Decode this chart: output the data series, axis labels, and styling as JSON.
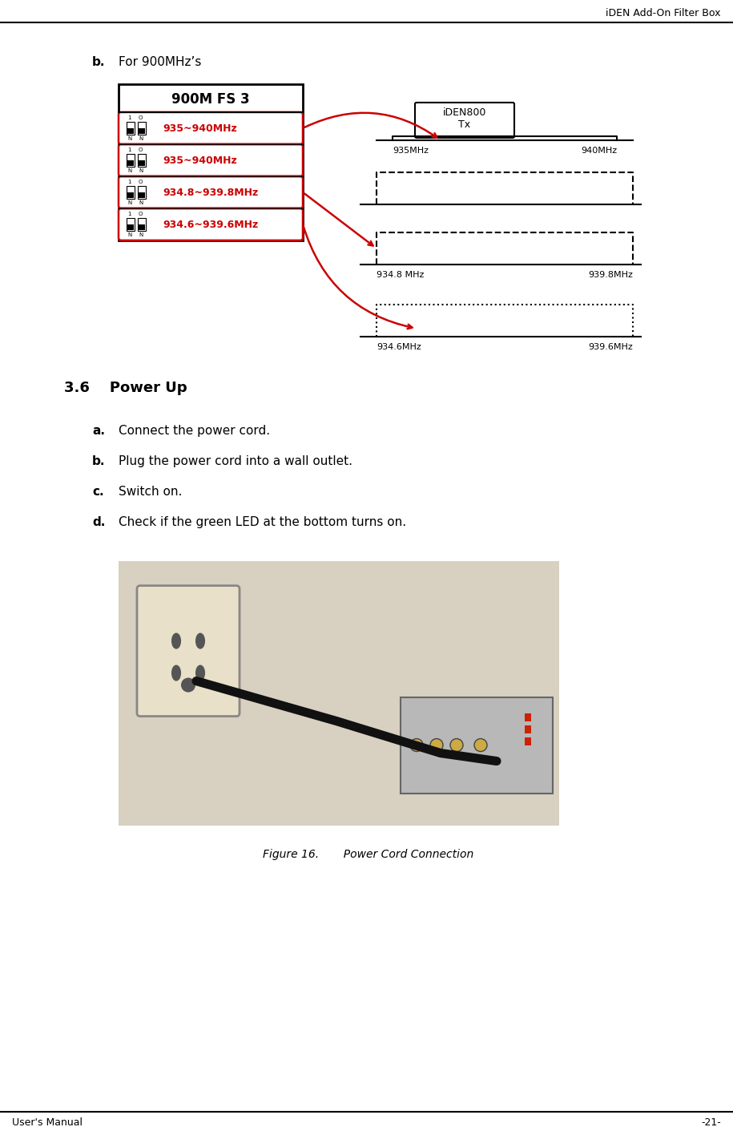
{
  "header_text": "iDEN Add-On Filter Box",
  "footer_left": "User's Manual",
  "footer_right": "-21-",
  "section_b_label": "b.",
  "section_b_text": "For 900MHz’s",
  "section_heading": "3.6    Power Up",
  "steps": [
    {
      "label": "a.",
      "text": "Connect the power cord."
    },
    {
      "label": "b.",
      "text": "Plug the power cord into a wall outlet."
    },
    {
      "label": "c.",
      "text": "Switch on."
    },
    {
      "label": "d.",
      "text": "Check if the green LED at the bottom turns on."
    }
  ],
  "figure_caption": "Figure 16.       Power Cord Connection",
  "filter_title": "900M FS 3",
  "filter_rows": [
    "935~940MHz",
    "935~940MHz",
    "934.8~939.8MHz",
    "934.6~939.6MHz"
  ],
  "diagram_top_label": "iDEN800\nTx",
  "diagram_labels": [
    [
      "935MHz",
      "940MHz"
    ],
    [
      "934.8 MHz",
      "939.8MHz"
    ],
    [
      "934.6MHz",
      "939.6MHz"
    ]
  ],
  "bg_color": "#ffffff",
  "text_color": "#000000",
  "red_color": "#cc0000",
  "header_line_color": "#000000"
}
